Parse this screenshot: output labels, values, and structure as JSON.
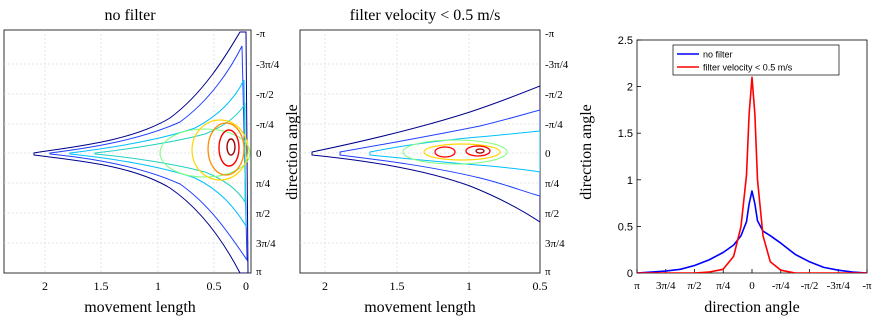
{
  "panels": {
    "left": {
      "title": "no filter",
      "xlabel": "movement length",
      "xticks": [
        "2",
        "1.5",
        "1",
        "0.5",
        "0"
      ]
    },
    "middle": {
      "title": "filter velocity < 0.5 m/s",
      "xlabel": "movement length",
      "xticks": [
        "2",
        "1.5",
        "1",
        "0.5"
      ]
    },
    "shared_angle_axis": {
      "label": "direction angle",
      "ticks": [
        "-π",
        "-3π/4",
        "-π/2",
        "-π/4",
        "0",
        "π/4",
        "π/2",
        "3π/4",
        "π"
      ]
    }
  },
  "colors": {
    "no_filter": "#0000ff",
    "filter": "#ff0000",
    "grid": "#dcdcdc",
    "contour_outer": "#00008b",
    "contour_mid": "#00bfff",
    "contour_warm": "#ffd700",
    "contour_peak": "#ff0000"
  },
  "chart_data": [
    {
      "type": "heatmap",
      "title": "no filter",
      "xlabel": "movement length",
      "ylabel": "direction angle",
      "xlim": [
        2.2,
        0
      ],
      "ylim": [
        -3.1416,
        3.1416
      ],
      "note": "density contours concentrated near 0 length and 0 angle, widening in angle toward length 0"
    },
    {
      "type": "heatmap",
      "title": "filter velocity < 0.5 m/s",
      "xlabel": "movement length",
      "ylabel": "direction angle",
      "xlim": [
        2.2,
        0.5
      ],
      "ylim": [
        -3.1416,
        3.1416
      ],
      "note": "density concentrated around length 1.0–1.2 near angle 0"
    },
    {
      "type": "line",
      "xlabel": "direction angle",
      "ylabel": "",
      "xlim": [
        3.1416,
        -3.1416
      ],
      "ylim": [
        0,
        2.5
      ],
      "xticks": [
        "π",
        "3π/4",
        "π/2",
        "π/4",
        "0",
        "-π/4",
        "-π/2",
        "-3π/4",
        "-π"
      ],
      "yticks": [
        "0",
        "0.5",
        "1",
        "1.5",
        "2",
        "2.5"
      ],
      "legend": "top-left",
      "series": [
        {
          "name": "no filter",
          "x": [
            3.14,
            2.75,
            2.36,
            1.96,
            1.57,
            1.18,
            0.79,
            0.5,
            0.3,
            0.15,
            0.08,
            0,
            -0.08,
            -0.15,
            -0.3,
            -0.5,
            -0.79,
            -1.18,
            -1.57,
            -1.96,
            -2.36,
            -2.75,
            -3.14
          ],
          "values": [
            0.0,
            0.01,
            0.02,
            0.04,
            0.08,
            0.14,
            0.22,
            0.3,
            0.4,
            0.55,
            0.74,
            0.88,
            0.74,
            0.56,
            0.45,
            0.4,
            0.32,
            0.2,
            0.12,
            0.06,
            0.03,
            0.01,
            0.0
          ]
        },
        {
          "name": "filter velocity < 0.5 m/s",
          "x": [
            3.14,
            2.36,
            1.57,
            1.18,
            0.79,
            0.5,
            0.3,
            0.15,
            0.08,
            0,
            -0.08,
            -0.15,
            -0.3,
            -0.5,
            -0.79,
            -1.18,
            -1.57,
            -2.36,
            -3.14
          ],
          "values": [
            0.0,
            0.0,
            0.0,
            0.01,
            0.04,
            0.18,
            0.5,
            1.05,
            1.7,
            2.1,
            1.7,
            1.0,
            0.4,
            0.12,
            0.03,
            0.0,
            0.0,
            0.0,
            0.0
          ]
        }
      ]
    }
  ]
}
